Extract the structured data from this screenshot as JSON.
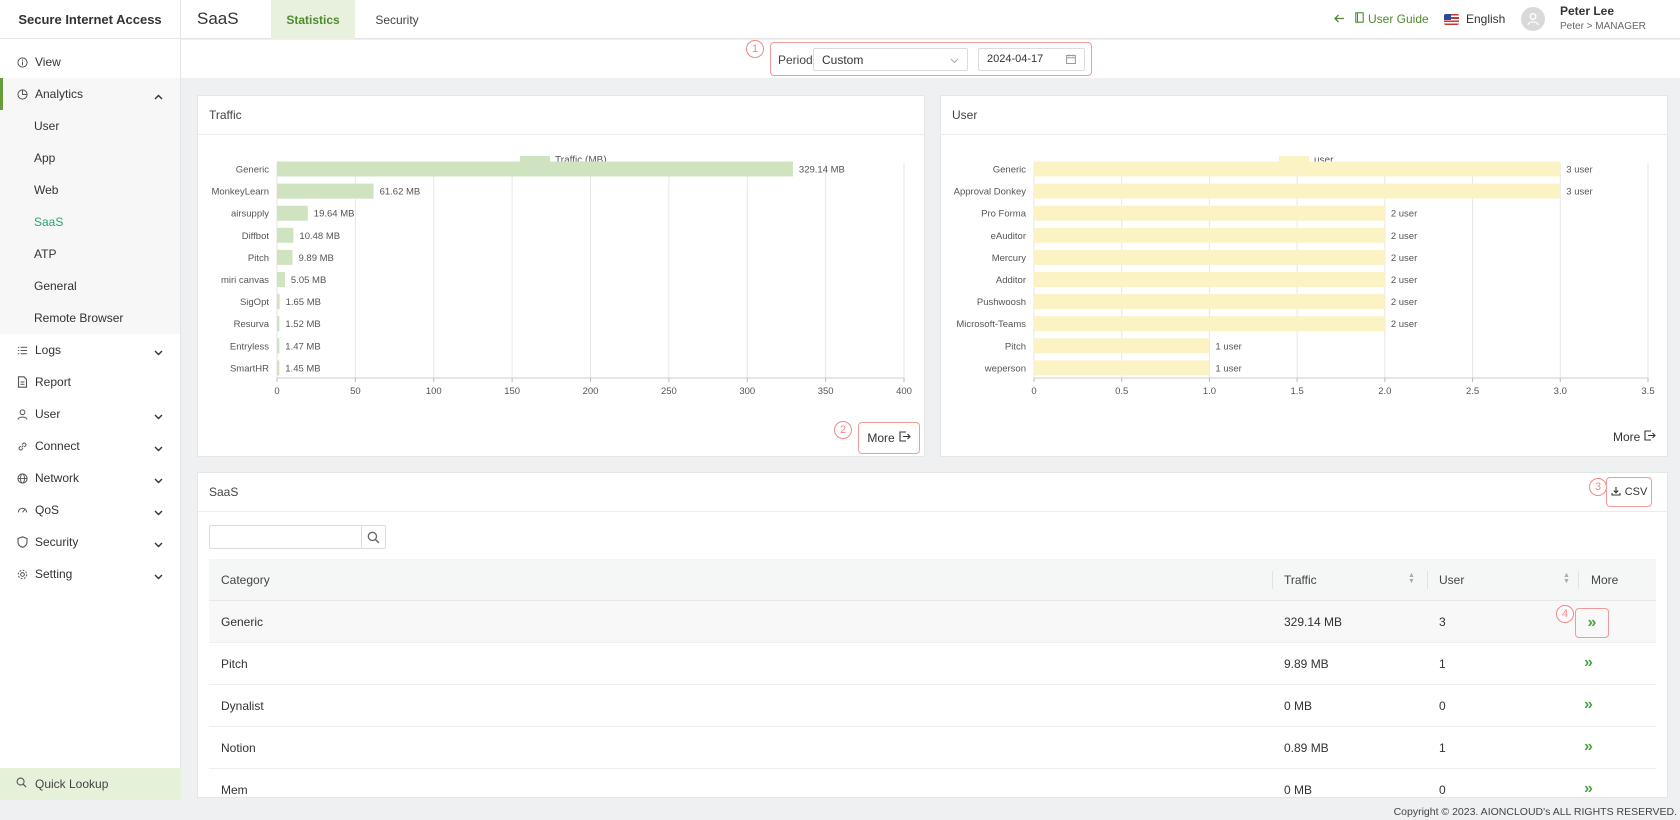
{
  "sidebar": {
    "brand": "Secure Internet Access",
    "items": [
      {
        "label": "View",
        "icon": "info-circle-icon"
      },
      {
        "label": "Analytics",
        "icon": "pie-chart-icon"
      },
      {
        "label": "Logs",
        "icon": "list-icon"
      },
      {
        "label": "Report",
        "icon": "document-icon"
      },
      {
        "label": "User",
        "icon": "user-icon"
      },
      {
        "label": "Connect",
        "icon": "link-icon"
      },
      {
        "label": "Network",
        "icon": "globe-icon"
      },
      {
        "label": "QoS",
        "icon": "gauge-icon"
      },
      {
        "label": "Security",
        "icon": "shield-icon"
      },
      {
        "label": "Setting",
        "icon": "gear-icon"
      }
    ],
    "analytics_sub": [
      "User",
      "App",
      "Web",
      "SaaS",
      "ATP",
      "General",
      "Remote Browser"
    ],
    "quick_lookup": "Quick Lookup"
  },
  "header": {
    "title": "SaaS",
    "tabs": [
      "Statistics",
      "Security"
    ],
    "user_guide": "User Guide",
    "language": "English",
    "user_name": "Peter Lee",
    "user_role": "Peter > MANAGER"
  },
  "period": {
    "label": "Period",
    "selected": "Custom",
    "date": "2024-04-17"
  },
  "markers": [
    "1",
    "2",
    "3",
    "4"
  ],
  "traffic_card": {
    "title": "Traffic",
    "more": "More"
  },
  "user_card": {
    "title": "User",
    "more": "More"
  },
  "table_card": {
    "title": "SaaS",
    "csv": "CSV",
    "search_value": "",
    "columns": [
      "Category",
      "Traffic",
      "User",
      "More"
    ],
    "rows": [
      {
        "category": "Generic",
        "traffic": "329.14 MB",
        "user": "3"
      },
      {
        "category": "Pitch",
        "traffic": "9.89 MB",
        "user": "1"
      },
      {
        "category": "Dynalist",
        "traffic": "0 MB",
        "user": "0"
      },
      {
        "category": "Notion",
        "traffic": "0.89 MB",
        "user": "1"
      },
      {
        "category": "Mem",
        "traffic": "0 MB",
        "user": "0"
      }
    ]
  },
  "copyright": "Copyright © 2023. AIONCLOUD's ALL RIGHTS RESERVED.",
  "colors": {
    "accent": "#4f8a2d",
    "traffic_bar": "#cfe3c1",
    "user_bar": "#fbf3c4",
    "marker": "#ef8a8a"
  },
  "chart_data": [
    {
      "type": "bar",
      "orientation": "horizontal",
      "legend": "Traffic (MB)",
      "legend_position": "top-center",
      "categories": [
        "Generic",
        "MonkeyLearn",
        "airsupply",
        "Diffbot",
        "Pitch",
        "miri canvas",
        "SigOpt",
        "Resurva",
        "Entryless",
        "SmartHR"
      ],
      "values": [
        329.14,
        61.62,
        19.64,
        10.48,
        9.89,
        5.05,
        1.65,
        1.52,
        1.47,
        1.45
      ],
      "labels": [
        "329.14 MB",
        "61.62 MB",
        "19.64 MB",
        "10.48 MB",
        "9.89 MB",
        "5.05 MB",
        "1.65 MB",
        "1.52 MB",
        "1.47 MB",
        "1.45 MB"
      ],
      "xlim": [
        0,
        400
      ],
      "ticks": [
        "0",
        "50",
        "100",
        "150",
        "200",
        "250",
        "300",
        "350",
        "400"
      ],
      "grid": true
    },
    {
      "type": "bar",
      "orientation": "horizontal",
      "legend": "user",
      "legend_position": "top-center",
      "categories": [
        "Generic",
        "Approval Donkey",
        "Pro Forma",
        "eAuditor",
        "Mercury",
        "Additor",
        "Pushwoosh",
        "Microsoft-Teams",
        "Pitch",
        "weperson"
      ],
      "values": [
        3,
        3,
        2,
        2,
        2,
        2,
        2,
        2,
        1,
        1
      ],
      "labels": [
        "3 user",
        "3 user",
        "2 user",
        "2 user",
        "2 user",
        "2 user",
        "2 user",
        "2 user",
        "1 user",
        "1 user"
      ],
      "xlim": [
        0,
        3.5
      ],
      "ticks": [
        "0",
        "0.5",
        "1.0",
        "1.5",
        "2.0",
        "2.5",
        "3.0",
        "3.5"
      ],
      "grid": true
    }
  ]
}
